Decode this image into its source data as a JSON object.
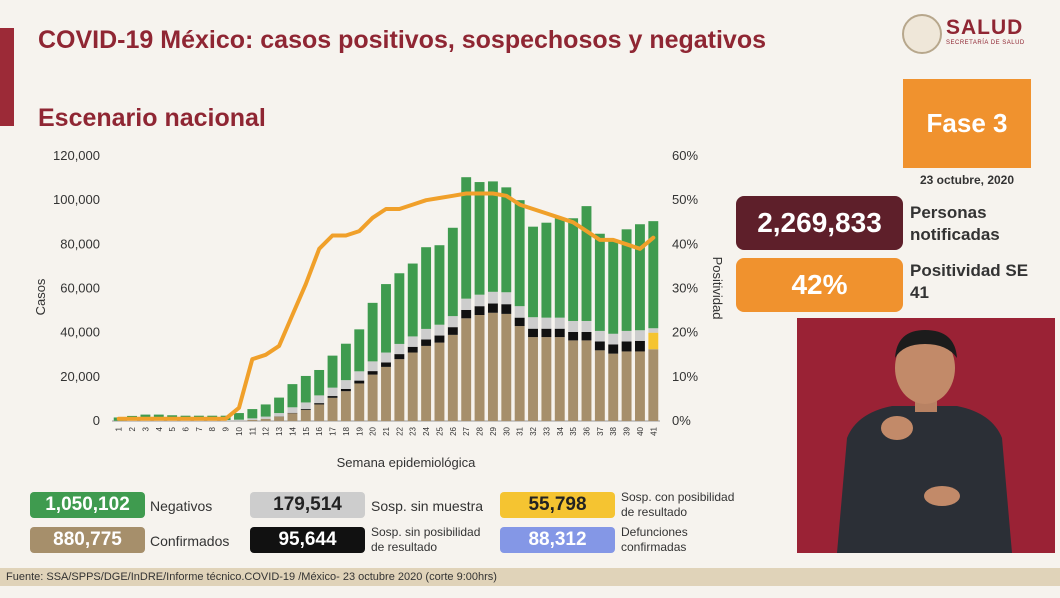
{
  "header": {
    "title": "COVID-19 México: casos positivos, sospechosos y negativos",
    "subtitle": "Escenario nacional",
    "logo_text": "SALUD",
    "logo_subtext": "SECRETARÍA DE SALUD"
  },
  "phase": {
    "label": "Fase 3",
    "date": "23 octubre, 2020"
  },
  "stats": {
    "notified_value": "2,269,833",
    "notified_label": "Personas notificadas",
    "positivity_value": "42%",
    "positivity_label": "Positividad SE 41"
  },
  "legend": [
    {
      "value": "1,050,102",
      "label": "Negativos",
      "color": "#3f9b4f",
      "text_color": "#ffffff"
    },
    {
      "value": "179,514",
      "label": "Sosp. sin muestra",
      "color": "#cdcdcd",
      "text_color": "#222222"
    },
    {
      "value": "55,798",
      "label": "Sosp. con posibilidad de resultado",
      "color": "#f5c431",
      "text_color": "#222222"
    },
    {
      "value": "880,775",
      "label": "Confirmados",
      "color": "#a68f6b",
      "text_color": "#ffffff"
    },
    {
      "value": "95,644",
      "label": "Sosp. sin posibilidad de resultado",
      "color": "#111111",
      "text_color": "#ffffff"
    },
    {
      "value": "88,312",
      "label": "Defunciones confirmadas",
      "color": "#8497e6",
      "text_color": "#ffffff"
    }
  ],
  "footer": {
    "source": "Fuente: SSA/SPPS/DGE/InDRE/Informe técnico.COVID-19 /México- 23 octubre 2020 (corte 9:00hrs)"
  },
  "chart_data": {
    "type": "bar",
    "xlabel": "Semana epidemiológica",
    "ylabel": "Casos",
    "y2label": "Positividad",
    "ylim": [
      0,
      120000
    ],
    "y2lim": [
      0,
      60
    ],
    "yticks": [
      "0",
      "20,000",
      "40,000",
      "60,000",
      "80,000",
      "100,000",
      "120,000"
    ],
    "y2ticks": [
      "0%",
      "10%",
      "20%",
      "30%",
      "40%",
      "50%",
      "60%"
    ],
    "categories": [
      "1",
      "2",
      "3",
      "4",
      "5",
      "6",
      "7",
      "8",
      "9",
      "10",
      "11",
      "12",
      "13",
      "14",
      "15",
      "16",
      "17",
      "18",
      "19",
      "20",
      "21",
      "22",
      "23",
      "24",
      "25",
      "26",
      "27",
      "28",
      "29",
      "30",
      "31",
      "32",
      "33",
      "34",
      "35",
      "36",
      "37",
      "38",
      "39",
      "40",
      "41"
    ],
    "series": [
      {
        "name": "Confirmados",
        "color": "#a68f6b",
        "values": [
          0,
          0,
          0,
          0,
          0,
          0,
          0,
          0,
          0,
          100,
          500,
          1000,
          2000,
          3500,
          5000,
          7500,
          10500,
          13500,
          17000,
          21000,
          24500,
          28000,
          31000,
          34000,
          35500,
          39000,
          46500,
          48000,
          49000,
          48500,
          43000,
          38000,
          38000,
          38000,
          36500,
          36500,
          32000,
          30500,
          31500,
          31500,
          32500
        ]
      },
      {
        "name": "Sosp. sin posibilidad de resultado",
        "color": "#111111",
        "values": [
          0,
          0,
          0,
          0,
          0,
          0,
          0,
          0,
          0,
          0,
          0,
          0,
          100,
          200,
          400,
          600,
          800,
          1000,
          1300,
          1600,
          2000,
          2300,
          2600,
          2900,
          3200,
          3500,
          3800,
          4000,
          4200,
          4400,
          3800,
          3800,
          3800,
          3800,
          3800,
          3800,
          4000,
          4200,
          4500,
          4800,
          0
        ]
      },
      {
        "name": "Sosp. con posibilidad de resultado",
        "color": "#f5c431",
        "values": [
          0,
          0,
          0,
          0,
          0,
          0,
          0,
          0,
          0,
          0,
          0,
          0,
          0,
          0,
          0,
          0,
          0,
          0,
          0,
          0,
          0,
          0,
          0,
          0,
          0,
          0,
          0,
          0,
          0,
          0,
          0,
          0,
          0,
          0,
          0,
          0,
          0,
          0,
          0,
          0,
          7500
        ]
      },
      {
        "name": "Sosp. sin muestra",
        "color": "#cdcdcd",
        "values": [
          100,
          300,
          400,
          400,
          400,
          400,
          400,
          400,
          400,
          500,
          700,
          1000,
          1500,
          2500,
          3000,
          3500,
          3800,
          4000,
          4200,
          4400,
          4500,
          4600,
          4700,
          4800,
          4900,
          5000,
          5100,
          5200,
          5300,
          5400,
          5200,
          5200,
          5000,
          5000,
          5000,
          5000,
          4800,
          4800,
          4800,
          4800,
          2000
        ]
      },
      {
        "name": "Negativos",
        "color": "#3f9b4f",
        "values": [
          1500,
          2000,
          2500,
          2500,
          2200,
          2000,
          2000,
          2000,
          2000,
          3000,
          4200,
          5500,
          7000,
          10500,
          12000,
          11500,
          14500,
          16500,
          19000,
          26500,
          31000,
          32000,
          33000,
          37000,
          36000,
          40000,
          55000,
          51000,
          50000,
          47500,
          48000,
          41000,
          43000,
          45000,
          46500,
          52000,
          44000,
          42000,
          46000,
          48000,
          48500
        ]
      }
    ],
    "line": {
      "name": "Positividad",
      "color": "#f0a02a",
      "values": [
        0.5,
        0.5,
        0.5,
        0.5,
        0.5,
        0.5,
        0.5,
        0.5,
        0.5,
        3,
        14,
        15,
        17,
        24,
        31,
        39,
        42,
        42,
        43,
        46,
        48,
        48,
        49,
        50,
        50.5,
        51,
        51.5,
        51.5,
        51.5,
        51,
        49,
        48,
        47,
        46,
        45,
        43,
        41,
        41,
        40,
        39,
        41.5
      ]
    }
  }
}
